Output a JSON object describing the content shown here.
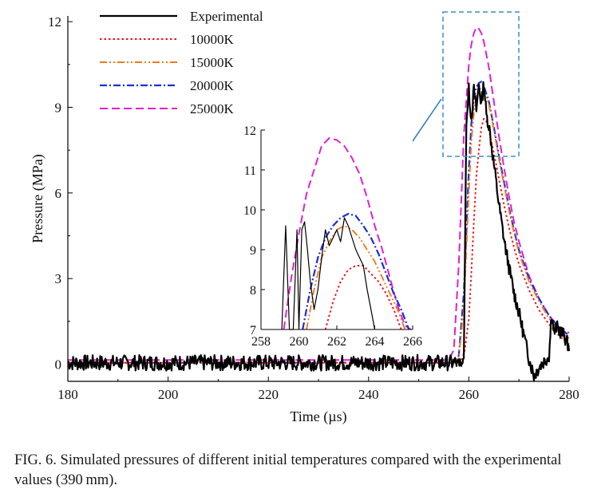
{
  "chart_data": {
    "type": "line",
    "xlabel": "Time (µs)",
    "ylabel": "Pressure (MPa)",
    "xlim": [
      180,
      280
    ],
    "ylim": [
      -0.6,
      12.2
    ],
    "xticks": [
      "180",
      "200",
      "220",
      "240",
      "260",
      "280"
    ],
    "yticks": [
      "0",
      "3",
      "6",
      "9",
      "12"
    ],
    "legend_position": "top-left",
    "series": [
      {
        "name": "Experimental",
        "color": "#000000",
        "dash": "",
        "width": 2.2,
        "x": [
          180,
          257.5,
          258,
          259,
          259.5,
          260,
          260.5,
          261,
          261.5,
          262,
          262.5,
          263,
          263.5,
          264,
          265,
          266,
          267,
          268,
          269,
          270,
          271,
          272,
          273,
          274,
          275,
          276,
          276.5,
          277,
          277.5,
          278,
          279,
          280
        ],
        "y": [
          0.05,
          0.05,
          0.05,
          0.1,
          8.5,
          9.6,
          8.6,
          9.6,
          8.9,
          9.8,
          9.1,
          9.9,
          8.7,
          8.4,
          7.0,
          5.6,
          4.4,
          3.4,
          2.5,
          1.8,
          1.0,
          0.2,
          -0.4,
          -0.1,
          0.1,
          0.3,
          1.8,
          1.1,
          1.3,
          1.2,
          1.0,
          0.6
        ]
      },
      {
        "name": "10000K",
        "color": "#e8141b",
        "dash": "2.5,3",
        "width": 1.9,
        "x": [
          180,
          257.5,
          258.5,
          259.2,
          260,
          260.5,
          261,
          261.5,
          262,
          262.5,
          263,
          263.5,
          264,
          265,
          266,
          267,
          268,
          269,
          270,
          272,
          274,
          276,
          278,
          280
        ],
        "y": [
          0.05,
          0.05,
          0.1,
          0.5,
          1.6,
          3.2,
          5.0,
          6.6,
          7.5,
          8.3,
          8.6,
          8.5,
          8.2,
          7.4,
          6.5,
          5.6,
          4.8,
          4.1,
          3.5,
          2.6,
          1.9,
          1.4,
          1.0,
          0.7
        ]
      },
      {
        "name": "15000K",
        "color": "#f07a1c",
        "dash": "9,3,2,3,2,3",
        "width": 1.9,
        "x": [
          180,
          257,
          258,
          259,
          260,
          260.5,
          261,
          261.5,
          262,
          262.5,
          263,
          264,
          265,
          266,
          267,
          268,
          269,
          270,
          272,
          274,
          276,
          278,
          280
        ],
        "y": [
          0.05,
          0.05,
          0.2,
          2.0,
          6.0,
          7.8,
          8.8,
          9.4,
          9.6,
          9.7,
          9.6,
          9.1,
          8.2,
          7.2,
          6.3,
          5.4,
          4.6,
          3.9,
          2.9,
          2.2,
          1.6,
          1.2,
          0.9
        ]
      },
      {
        "name": "20000K",
        "color": "#1c2fd6",
        "dash": "9,3,2,3",
        "width": 2.2,
        "x": [
          180,
          257,
          258,
          259,
          260,
          260.5,
          261,
          261.5,
          262,
          262.5,
          263,
          264,
          265,
          266,
          267,
          268,
          269,
          270,
          272,
          274,
          276,
          278,
          280
        ],
        "y": [
          0.05,
          0.05,
          0.3,
          2.5,
          6.8,
          8.4,
          9.3,
          9.7,
          9.85,
          9.9,
          9.75,
          9.2,
          8.3,
          7.3,
          6.4,
          5.5,
          4.7,
          4.0,
          3.0,
          2.3,
          1.7,
          1.3,
          1.0
        ]
      },
      {
        "name": "25000K",
        "color": "#e020d0",
        "dash": "10,5",
        "width": 2.0,
        "x": [
          180,
          256,
          257,
          258,
          259,
          260,
          260.5,
          261,
          261.5,
          262,
          262.5,
          263,
          264,
          265,
          266,
          267,
          268,
          269,
          270,
          272,
          274,
          276,
          278,
          280
        ],
        "y": [
          0.15,
          0.15,
          0.5,
          3.5,
          8.0,
          10.5,
          11.2,
          11.6,
          11.8,
          11.75,
          11.6,
          11.3,
          10.4,
          9.2,
          8.0,
          6.9,
          5.9,
          5.0,
          4.3,
          3.1,
          2.3,
          1.7,
          1.3,
          1.1
        ]
      }
    ],
    "inset": {
      "xlim": [
        258,
        266
      ],
      "ylim": [
        7,
        12
      ],
      "xticks": [
        "258",
        "260",
        "262",
        "264",
        "266"
      ],
      "yticks": [
        "7",
        "8",
        "9",
        "10",
        "11",
        "12"
      ],
      "series": [
        {
          "name": "Experimental",
          "x": [
            259.1,
            259.3,
            259.5,
            259.7,
            259.9,
            260.0,
            260.15,
            260.3,
            260.45,
            260.6,
            260.8,
            261.0,
            261.2,
            261.4,
            261.6,
            261.8,
            262.0,
            262.2,
            262.4,
            262.6,
            262.8,
            263.0,
            263.2,
            263.4,
            263.6,
            263.8,
            264.0
          ],
          "y": [
            7.0,
            9.6,
            7.0,
            7.0,
            9.5,
            7.0,
            9.5,
            9.7,
            9.0,
            8.2,
            7.5,
            8.0,
            8.8,
            9.5,
            9.1,
            9.3,
            9.5,
            9.2,
            9.8,
            9.6,
            9.3,
            9.0,
            8.8,
            8.6,
            8.0,
            7.5,
            7.0
          ]
        },
        {
          "name": "10000K",
          "x": [
            261.4,
            261.8,
            262.2,
            262.6,
            263.0,
            263.4,
            263.8,
            264.2,
            264.6,
            265.0,
            265.4
          ],
          "y": [
            7.0,
            7.7,
            8.2,
            8.5,
            8.6,
            8.6,
            8.4,
            8.2,
            7.9,
            7.5,
            7.0
          ]
        },
        {
          "name": "15000K",
          "x": [
            260.4,
            260.8,
            261.2,
            261.6,
            262.0,
            262.4,
            262.8,
            263.2,
            263.6,
            264.0,
            264.4,
            264.8,
            265.2,
            265.6
          ],
          "y": [
            7.0,
            8.0,
            8.8,
            9.2,
            9.5,
            9.6,
            9.5,
            9.3,
            9.0,
            8.7,
            8.3,
            7.9,
            7.5,
            7.0
          ]
        },
        {
          "name": "20000K",
          "x": [
            260.2,
            260.6,
            261.0,
            261.4,
            261.8,
            262.2,
            262.6,
            263.0,
            263.4,
            263.8,
            264.2,
            264.6,
            265.0,
            265.4,
            265.8
          ],
          "y": [
            7.0,
            8.0,
            8.8,
            9.3,
            9.6,
            9.8,
            9.9,
            9.85,
            9.6,
            9.3,
            8.9,
            8.4,
            7.9,
            7.5,
            7.0
          ]
        },
        {
          "name": "25000K",
          "x": [
            259.2,
            259.6,
            260.0,
            260.4,
            260.8,
            261.2,
            261.6,
            262.0,
            262.4,
            262.8,
            263.2,
            263.6,
            264.0,
            264.4,
            264.8,
            265.2,
            265.6,
            265.9
          ],
          "y": [
            7.0,
            8.3,
            9.4,
            10.4,
            11.0,
            11.6,
            11.8,
            11.75,
            11.6,
            11.3,
            10.9,
            10.3,
            9.6,
            9.0,
            8.3,
            7.6,
            7.1,
            7.0
          ]
        }
      ]
    }
  },
  "caption": "FIG. 6. Simulated pressures of different initial temperatures compared with the experimental values (390 mm)."
}
